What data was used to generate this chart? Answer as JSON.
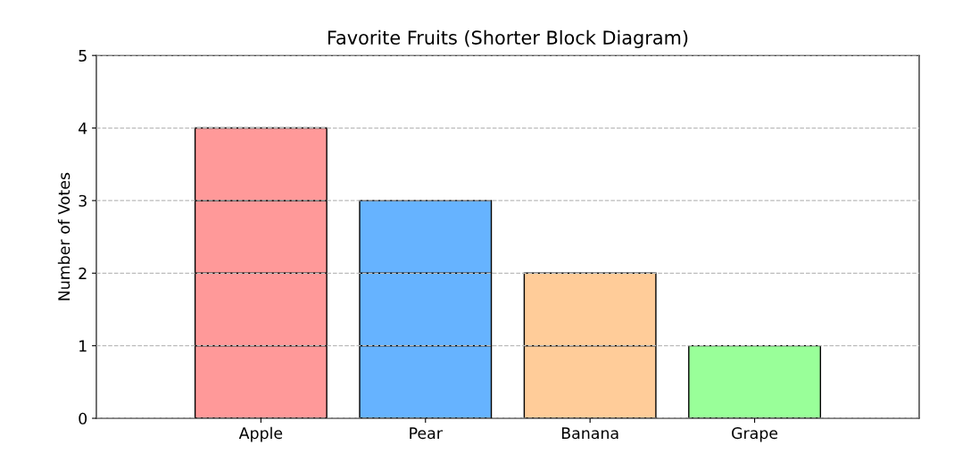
{
  "chart_data": {
    "type": "bar",
    "title": "Favorite Fruits (Shorter Block Diagram)",
    "ylabel": "Number of Votes",
    "categories": [
      "Apple",
      "Pear",
      "Banana",
      "Grape"
    ],
    "stacked": true,
    "series": [
      {
        "colors": [
          "#ff9999",
          "#66b3ff",
          "#ffcc99",
          "#99ff99"
        ],
        "values": [
          1,
          1,
          1,
          1
        ]
      },
      {
        "colors": [
          "#ff9999",
          "#66b3ff",
          "#ffcc99",
          "#99ff99"
        ],
        "values": [
          1,
          1,
          1,
          null
        ]
      },
      {
        "colors": [
          "#ff9999",
          "#66b3ff",
          "#ffcc99",
          "#99ff99"
        ],
        "values": [
          1,
          1,
          null,
          null
        ]
      },
      {
        "colors": [
          "#ff9999",
          "#66b3ff",
          "#ffcc99",
          "#99ff99"
        ],
        "values": [
          1,
          null,
          null,
          null
        ]
      }
    ],
    "ylim": [
      0,
      5
    ],
    "yticks": [
      0,
      1,
      2,
      3,
      4,
      5
    ],
    "grid": "y"
  }
}
